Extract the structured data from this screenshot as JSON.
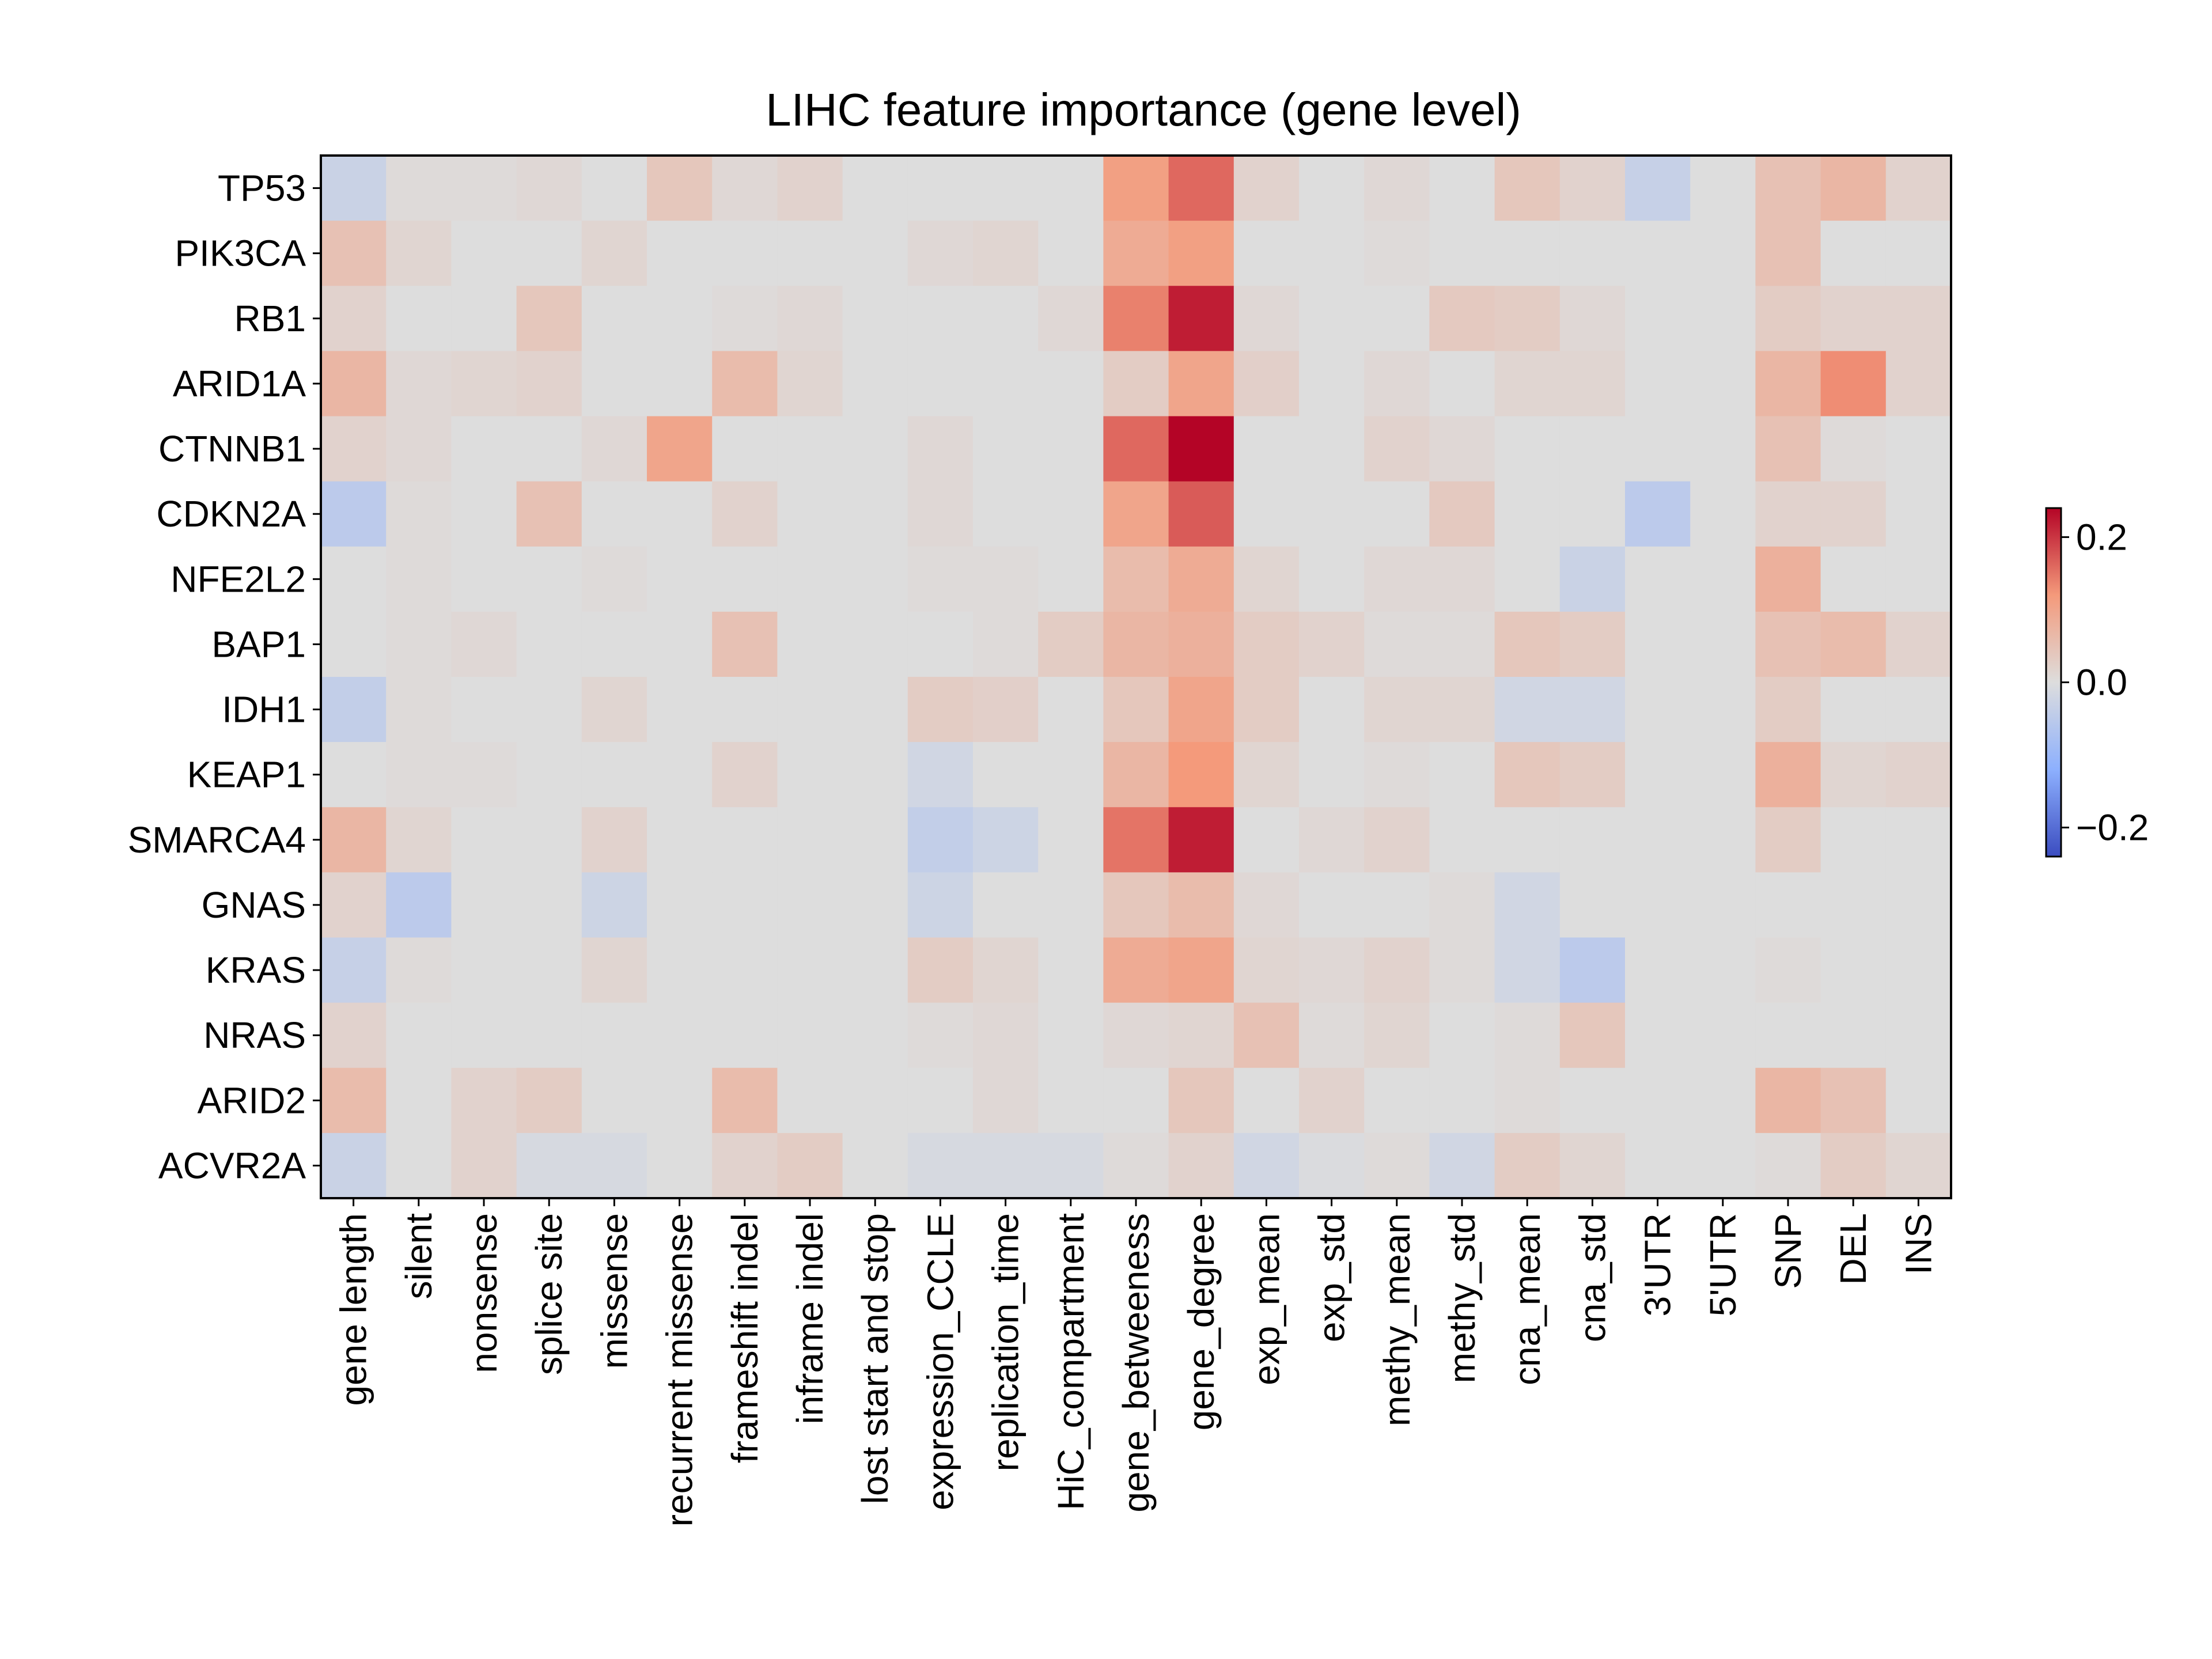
{
  "chart_data": {
    "type": "heatmap",
    "title": "LIHC feature importance (gene level)",
    "rows": [
      "TP53",
      "PIK3CA",
      "RB1",
      "ARID1A",
      "CTNNB1",
      "CDKN2A",
      "NFE2L2",
      "BAP1",
      "IDH1",
      "KEAP1",
      "SMARCA4",
      "GNAS",
      "KRAS",
      "NRAS",
      "ARID2",
      "ACVR2A"
    ],
    "columns": [
      "gene length",
      "silent",
      "nonsense",
      "splice site",
      "missense",
      "recurrent missense",
      "frameshift indel",
      "inframe indel",
      "lost start and stop",
      "expression_CCLE",
      "replication_time",
      "HiC_compartment",
      "gene_betweeness",
      "gene_degree",
      "exp_mean",
      "exp_std",
      "methy_mean",
      "methy_std",
      "cna_mean",
      "cna_std",
      "3'UTR",
      "5'UTR",
      "SNP",
      "DEL",
      "INS"
    ],
    "values": [
      [
        -0.03,
        0.005,
        0.005,
        0.01,
        0.0,
        0.04,
        0.01,
        0.02,
        0.0,
        0.0,
        0.0,
        0.0,
        0.11,
        0.16,
        0.02,
        0.0,
        0.01,
        0.0,
        0.04,
        0.02,
        -0.035,
        0.0,
        0.05,
        0.07,
        0.02
      ],
      [
        0.05,
        0.015,
        0.0,
        0.0,
        0.015,
        0.0,
        0.0,
        0.0,
        0.0,
        0.01,
        0.015,
        0.0,
        0.09,
        0.11,
        0.0,
        0.0,
        0.005,
        0.0,
        0.0,
        0.0,
        0.0,
        0.0,
        0.05,
        0.0,
        0.0
      ],
      [
        0.02,
        0.0,
        0.0,
        0.04,
        0.0,
        0.0,
        0.005,
        0.01,
        0.0,
        0.0,
        0.0,
        0.01,
        0.14,
        0.22,
        0.01,
        0.0,
        0.0,
        0.035,
        0.03,
        0.01,
        0.0,
        0.0,
        0.03,
        0.02,
        0.02
      ],
      [
        0.07,
        0.01,
        0.015,
        0.02,
        0.0,
        0.0,
        0.06,
        0.015,
        0.0,
        0.0,
        0.0,
        0.0,
        0.03,
        0.1,
        0.025,
        0.0,
        0.01,
        0.0,
        0.015,
        0.015,
        0.0,
        0.0,
        0.07,
        0.13,
        0.02
      ],
      [
        0.02,
        0.01,
        0.0,
        0.0,
        0.01,
        0.1,
        0.0,
        0.0,
        0.0,
        0.01,
        0.0,
        0.0,
        0.16,
        0.24,
        0.0,
        0.0,
        0.02,
        0.01,
        0.0,
        0.0,
        0.0,
        0.0,
        0.05,
        0.005,
        0.0
      ],
      [
        -0.05,
        0.005,
        0.0,
        0.05,
        0.0,
        0.0,
        0.02,
        0.0,
        0.0,
        0.01,
        0.0,
        0.0,
        0.1,
        0.17,
        0.0,
        0.0,
        0.0,
        0.035,
        0.0,
        0.0,
        -0.05,
        0.0,
        0.02,
        0.02,
        0.0
      ],
      [
        0.0,
        0.005,
        0.0,
        0.0,
        0.005,
        0.0,
        0.0,
        0.0,
        0.0,
        0.005,
        0.005,
        0.0,
        0.06,
        0.09,
        0.015,
        0.0,
        0.01,
        0.01,
        0.0,
        -0.03,
        0.0,
        0.0,
        0.08,
        0.0,
        0.0
      ],
      [
        0.0,
        0.005,
        0.01,
        0.0,
        0.0,
        0.0,
        0.05,
        0.0,
        0.0,
        0.0,
        0.005,
        0.03,
        0.07,
        0.08,
        0.03,
        0.02,
        0.005,
        0.005,
        0.04,
        0.03,
        0.0,
        0.0,
        0.05,
        0.06,
        0.02
      ],
      [
        -0.04,
        0.005,
        0.0,
        0.0,
        0.015,
        0.0,
        0.0,
        0.0,
        0.0,
        0.03,
        0.025,
        0.0,
        0.04,
        0.1,
        0.03,
        0.0,
        0.015,
        0.015,
        -0.02,
        -0.02,
        0.0,
        0.0,
        0.03,
        0.0,
        0.0
      ],
      [
        0.0,
        0.005,
        0.005,
        0.0,
        0.0,
        0.0,
        0.02,
        0.0,
        0.0,
        -0.02,
        0.0,
        0.0,
        0.07,
        0.12,
        0.015,
        0.0,
        0.005,
        0.0,
        0.04,
        0.03,
        0.0,
        0.0,
        0.08,
        0.015,
        0.02
      ],
      [
        0.07,
        0.015,
        0.0,
        0.0,
        0.02,
        0.0,
        0.0,
        0.0,
        0.0,
        -0.04,
        -0.025,
        0.0,
        0.15,
        0.22,
        0.0,
        0.01,
        0.02,
        0.0,
        0.0,
        0.0,
        0.0,
        0.0,
        0.03,
        0.0,
        0.0
      ],
      [
        0.02,
        -0.05,
        0.0,
        0.0,
        -0.025,
        0.0,
        0.0,
        0.0,
        0.0,
        -0.025,
        0.0,
        0.0,
        0.04,
        0.06,
        0.01,
        0.0,
        0.0,
        0.005,
        -0.02,
        0.0,
        0.0,
        0.0,
        0.0,
        0.0,
        0.0
      ],
      [
        -0.035,
        0.005,
        0.0,
        0.0,
        0.015,
        0.0,
        0.0,
        0.0,
        0.0,
        0.03,
        0.015,
        0.0,
        0.09,
        0.1,
        0.015,
        0.01,
        0.02,
        0.005,
        -0.02,
        -0.05,
        0.0,
        0.0,
        0.005,
        0.0,
        0.0
      ],
      [
        0.02,
        0.0,
        0.0,
        0.0,
        0.0,
        0.0,
        0.0,
        0.0,
        0.0,
        0.005,
        0.01,
        0.0,
        0.01,
        0.015,
        0.05,
        0.005,
        0.015,
        0.0,
        0.005,
        0.04,
        0.0,
        0.0,
        0.0,
        0.0,
        0.0
      ],
      [
        0.06,
        0.0,
        0.02,
        0.03,
        0.0,
        0.0,
        0.06,
        0.0,
        0.0,
        0.0,
        0.01,
        0.0,
        0.0,
        0.04,
        0.0,
        0.02,
        0.0,
        0.0,
        0.005,
        0.0,
        0.0,
        0.0,
        0.07,
        0.05,
        0.0
      ],
      [
        -0.03,
        0.0,
        0.02,
        -0.01,
        -0.01,
        0.0,
        0.02,
        0.03,
        0.0,
        -0.01,
        -0.01,
        -0.01,
        0.005,
        0.02,
        -0.02,
        -0.005,
        0.005,
        -0.02,
        0.03,
        0.015,
        0.0,
        0.0,
        0.005,
        0.03,
        0.015
      ]
    ],
    "colormap": "coolwarm",
    "vmin": -0.24,
    "vmax": 0.24,
    "colorbar_ticks": [
      {
        "value": 0.2,
        "label": "0.2"
      },
      {
        "value": 0.0,
        "label": "0.0"
      },
      {
        "value": -0.2,
        "label": "−0.2"
      }
    ],
    "colorbar_position": "right",
    "grid": false,
    "xlabel": "",
    "ylabel": ""
  }
}
